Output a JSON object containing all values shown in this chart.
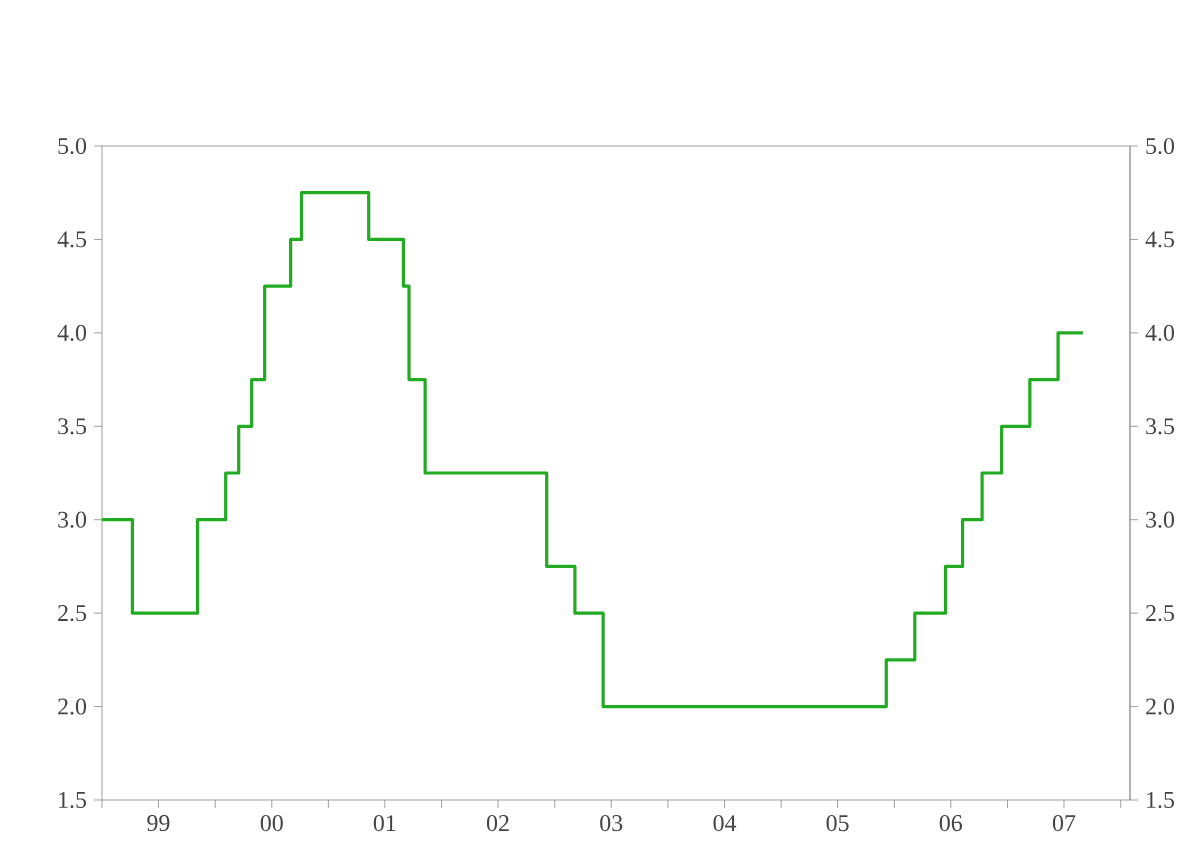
{
  "chart_data": {
    "type": "step",
    "x": [
      "1999-01-01",
      "1999-04-09",
      "1999-11-05",
      "2000-02-04",
      "2000-03-17",
      "2000-04-28",
      "2000-06-09",
      "2000-09-01",
      "2000-10-06",
      "2001-05-11",
      "2001-08-31",
      "2001-09-18",
      "2001-11-09",
      "2002-12-06",
      "2003-03-07",
      "2003-06-06",
      "2005-12-06",
      "2006-03-08",
      "2006-06-15",
      "2006-08-09",
      "2006-10-11",
      "2006-12-13",
      "2007-03-14",
      "2007-06-13",
      "2007-09-01"
    ],
    "series": [
      {
        "color": "#22aa22",
        "values": [
          3.0,
          2.5,
          3.0,
          3.25,
          3.5,
          3.75,
          4.25,
          4.5,
          4.75,
          4.5,
          4.25,
          3.75,
          3.25,
          2.75,
          2.5,
          2.0,
          2.25,
          2.5,
          2.75,
          3.0,
          3.25,
          3.5,
          3.75,
          4.0,
          4.0
        ]
      }
    ],
    "xlim": [
      "1999-01-01",
      "2008-01-31"
    ],
    "xticks": [
      {
        "value": "1999-01-01",
        "label": null
      },
      {
        "value": "1999-07-02",
        "label": "99"
      },
      {
        "value": "2000-01-01",
        "label": null
      },
      {
        "value": "2000-07-02",
        "label": "00"
      },
      {
        "value": "2001-01-01",
        "label": null
      },
      {
        "value": "2001-07-02",
        "label": "01"
      },
      {
        "value": "2002-01-01",
        "label": null
      },
      {
        "value": "2002-07-02",
        "label": "02"
      },
      {
        "value": "2003-01-01",
        "label": null
      },
      {
        "value": "2003-07-02",
        "label": "03"
      },
      {
        "value": "2004-01-01",
        "label": null
      },
      {
        "value": "2004-07-02",
        "label": "04"
      },
      {
        "value": "2005-01-01",
        "label": null
      },
      {
        "value": "2005-07-02",
        "label": "05"
      },
      {
        "value": "2006-01-01",
        "label": null
      },
      {
        "value": "2006-07-02",
        "label": "06"
      },
      {
        "value": "2007-01-01",
        "label": null
      },
      {
        "value": "2007-07-02",
        "label": "07"
      },
      {
        "value": "2008-01-01",
        "label": null
      }
    ],
    "ylim": [
      1.5,
      5.0
    ],
    "yticks": [
      1.5,
      {
        "value": 2,
        "label": "2.0"
      },
      2.5,
      {
        "value": 3,
        "label": "3.0"
      },
      3.5,
      {
        "value": 4,
        "label": "4.0"
      },
      4.5,
      {
        "value": 5,
        "label": "5.0"
      }
    ],
    "y2lim": [
      1.5,
      5.0
    ],
    "y2ticks": [
      1.5,
      {
        "value": 2,
        "label": "2.0"
      },
      2.5,
      {
        "value": 3,
        "label": "3.0"
      },
      3.5,
      {
        "value": 4,
        "label": "4.0"
      },
      4.5,
      {
        "value": 5,
        "label": "5.0"
      }
    ]
  }
}
